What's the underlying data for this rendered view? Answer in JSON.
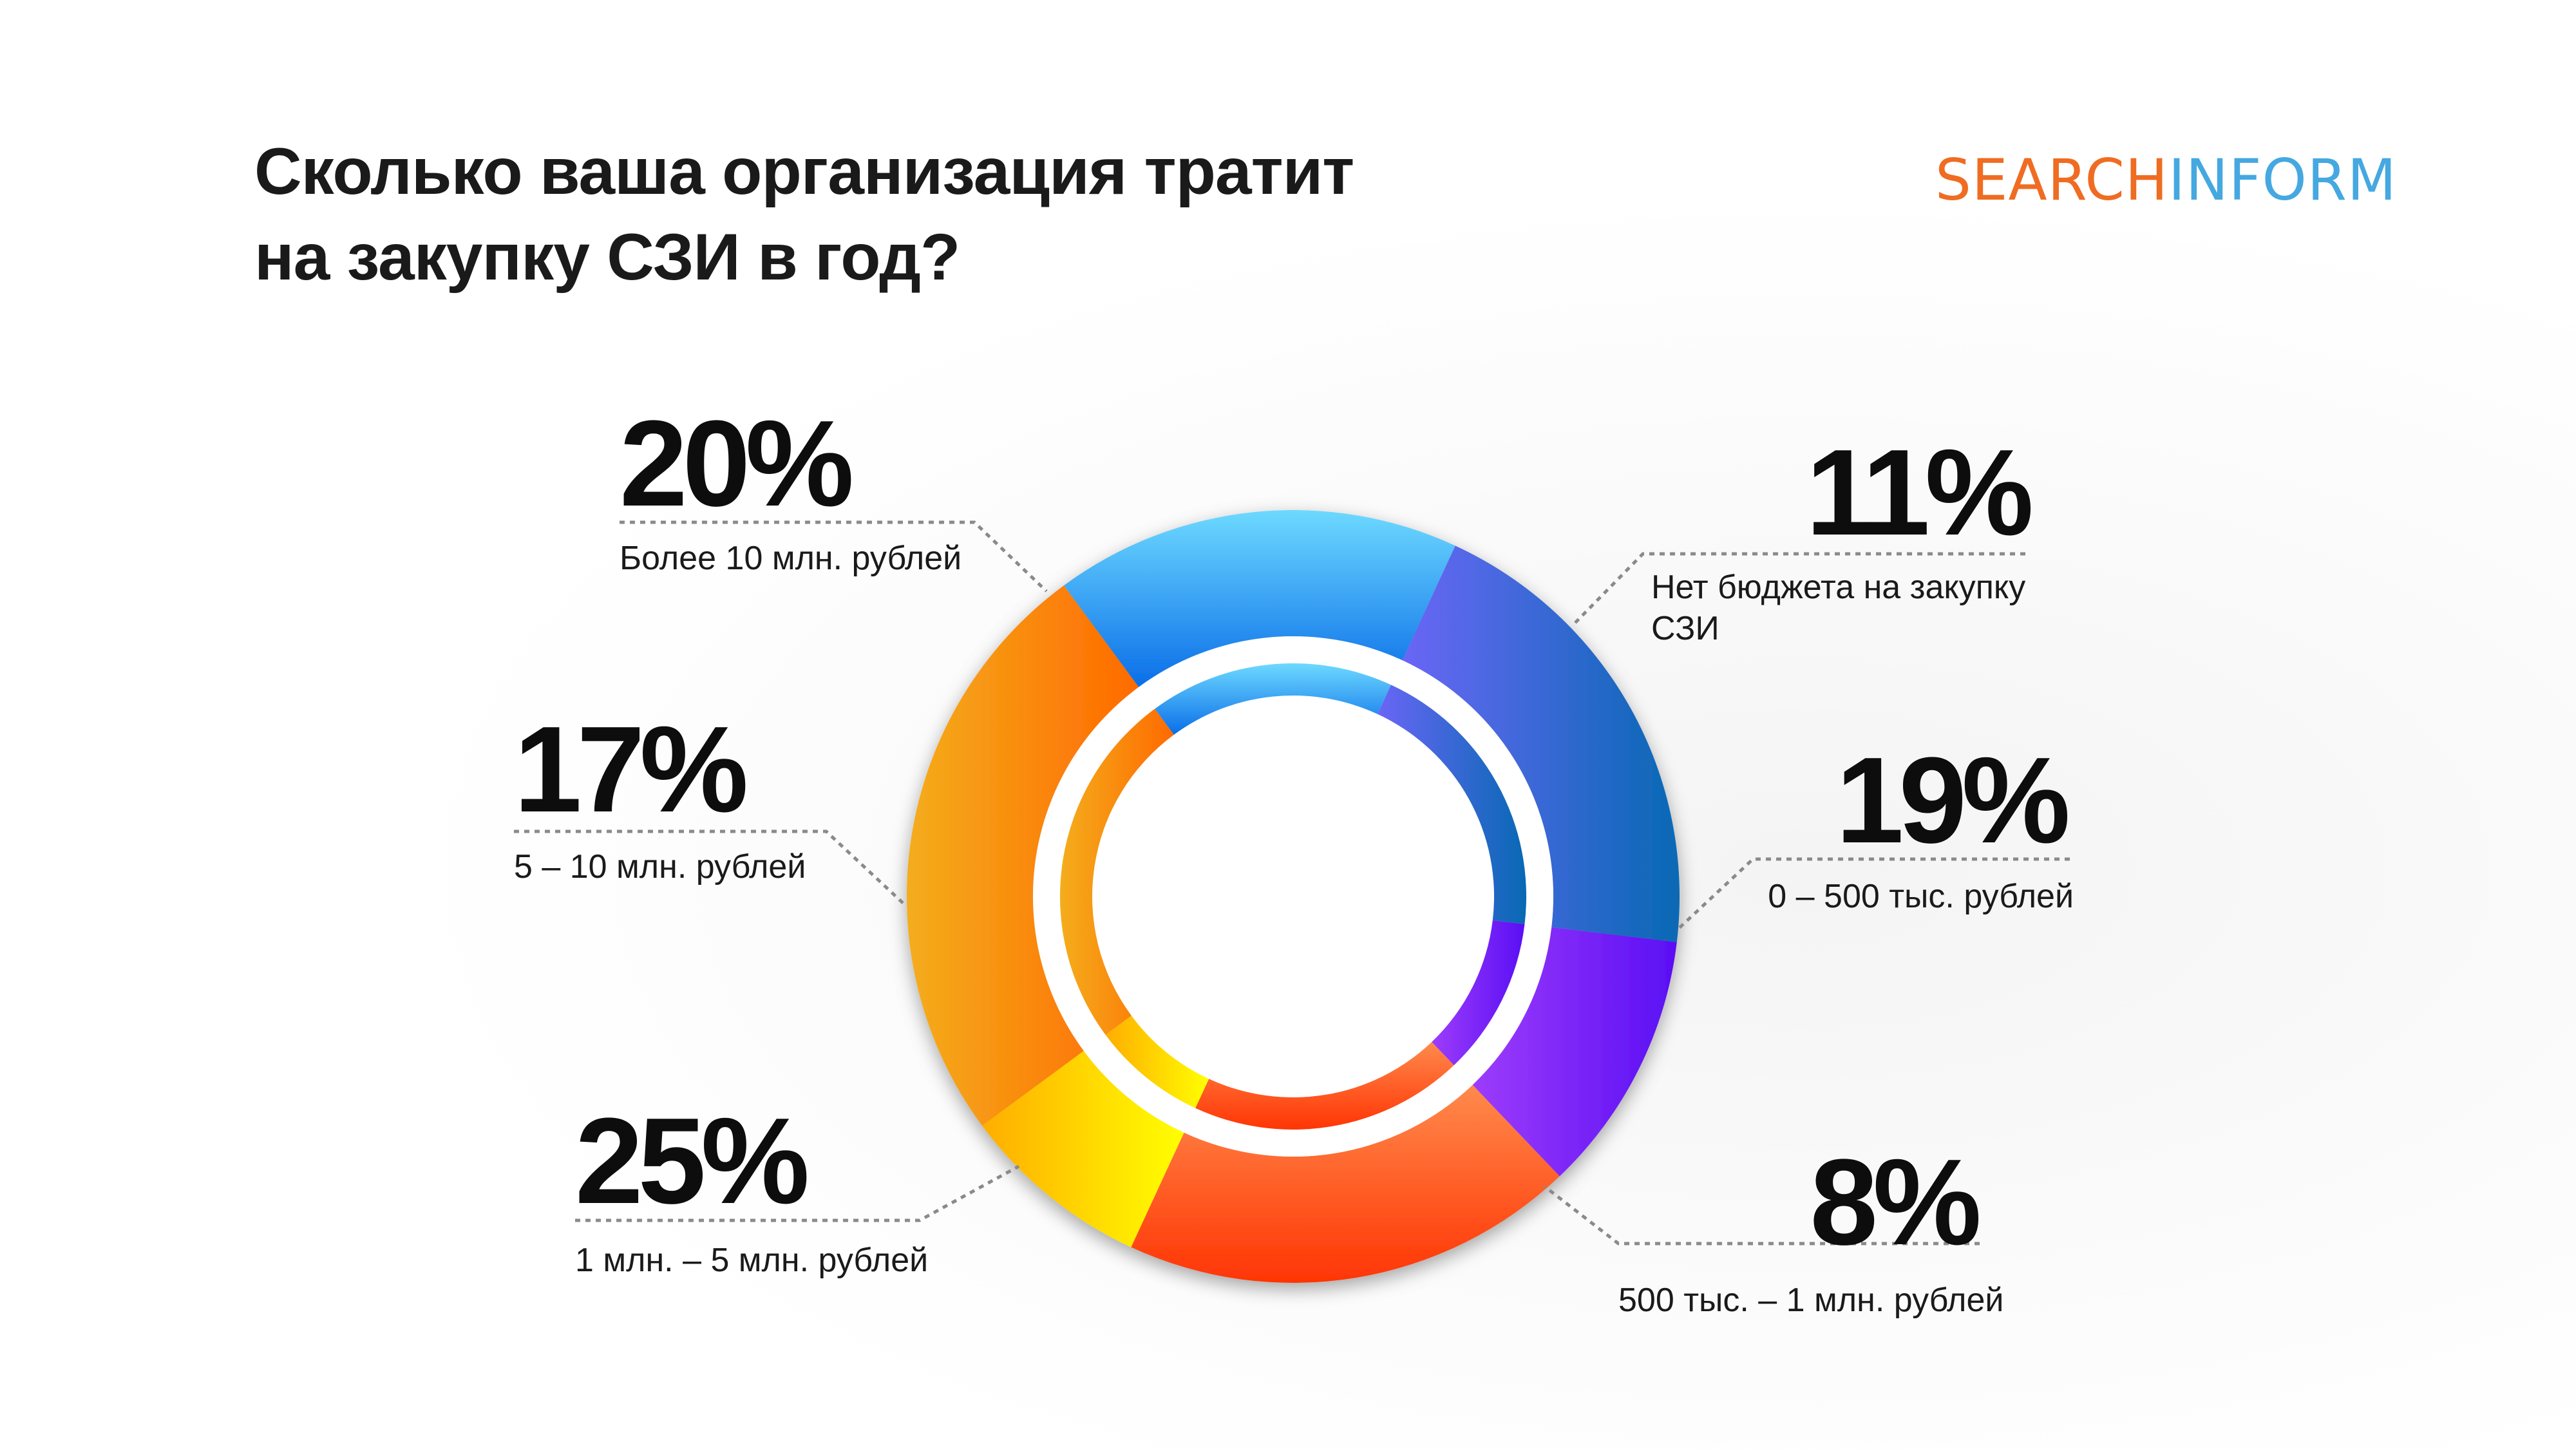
{
  "title_lines": [
    "Сколько ваша организация тратит",
    "на закупку СЗИ в год?"
  ],
  "logo": {
    "part1": "SEARCH",
    "part2": "INFORM",
    "colors": {
      "part1": "#ef6c22",
      "part2": "#45a8e0"
    }
  },
  "chart_data": {
    "type": "pie",
    "style": "donut with inner ring",
    "title": "Сколько ваша организация тратит на закупку СЗИ в год?",
    "unit": "%",
    "slices": [
      {
        "label": "Более 10 млн. рублей",
        "value": 20,
        "display": "20%",
        "colors": [
          "#6a66f6",
          "#0869b4"
        ],
        "gradient": "horizontal"
      },
      {
        "label": "Нет бюджета на закупку СЗИ",
        "value": 11,
        "display": "11%",
        "colors": [
          "#9d3cfb",
          "#5a0ff4"
        ],
        "gradient": "horizontal"
      },
      {
        "label": "0 – 500 тыс. рублей",
        "value": 19,
        "display": "19%",
        "colors": [
          "#ff8a4c",
          "#ff3504"
        ],
        "gradient": "vertical"
      },
      {
        "label": "500 тыс. – 1 млн. рублей",
        "value": 8,
        "display": "8%",
        "colors": [
          "#ffad00",
          "#ffff00"
        ],
        "gradient": "horizontal"
      },
      {
        "label": "1 млн. – 5 млн. рублей",
        "value": 25,
        "display": "25%",
        "colors": [
          "#f4ad1c",
          "#ff6a00"
        ],
        "gradient": "horizontal"
      },
      {
        "label": "5 – 10 млн. рублей",
        "value": 17,
        "display": "17%",
        "colors": [
          "#6dd9ff",
          "#0a6ee8"
        ],
        "gradient": "vertical"
      }
    ]
  }
}
